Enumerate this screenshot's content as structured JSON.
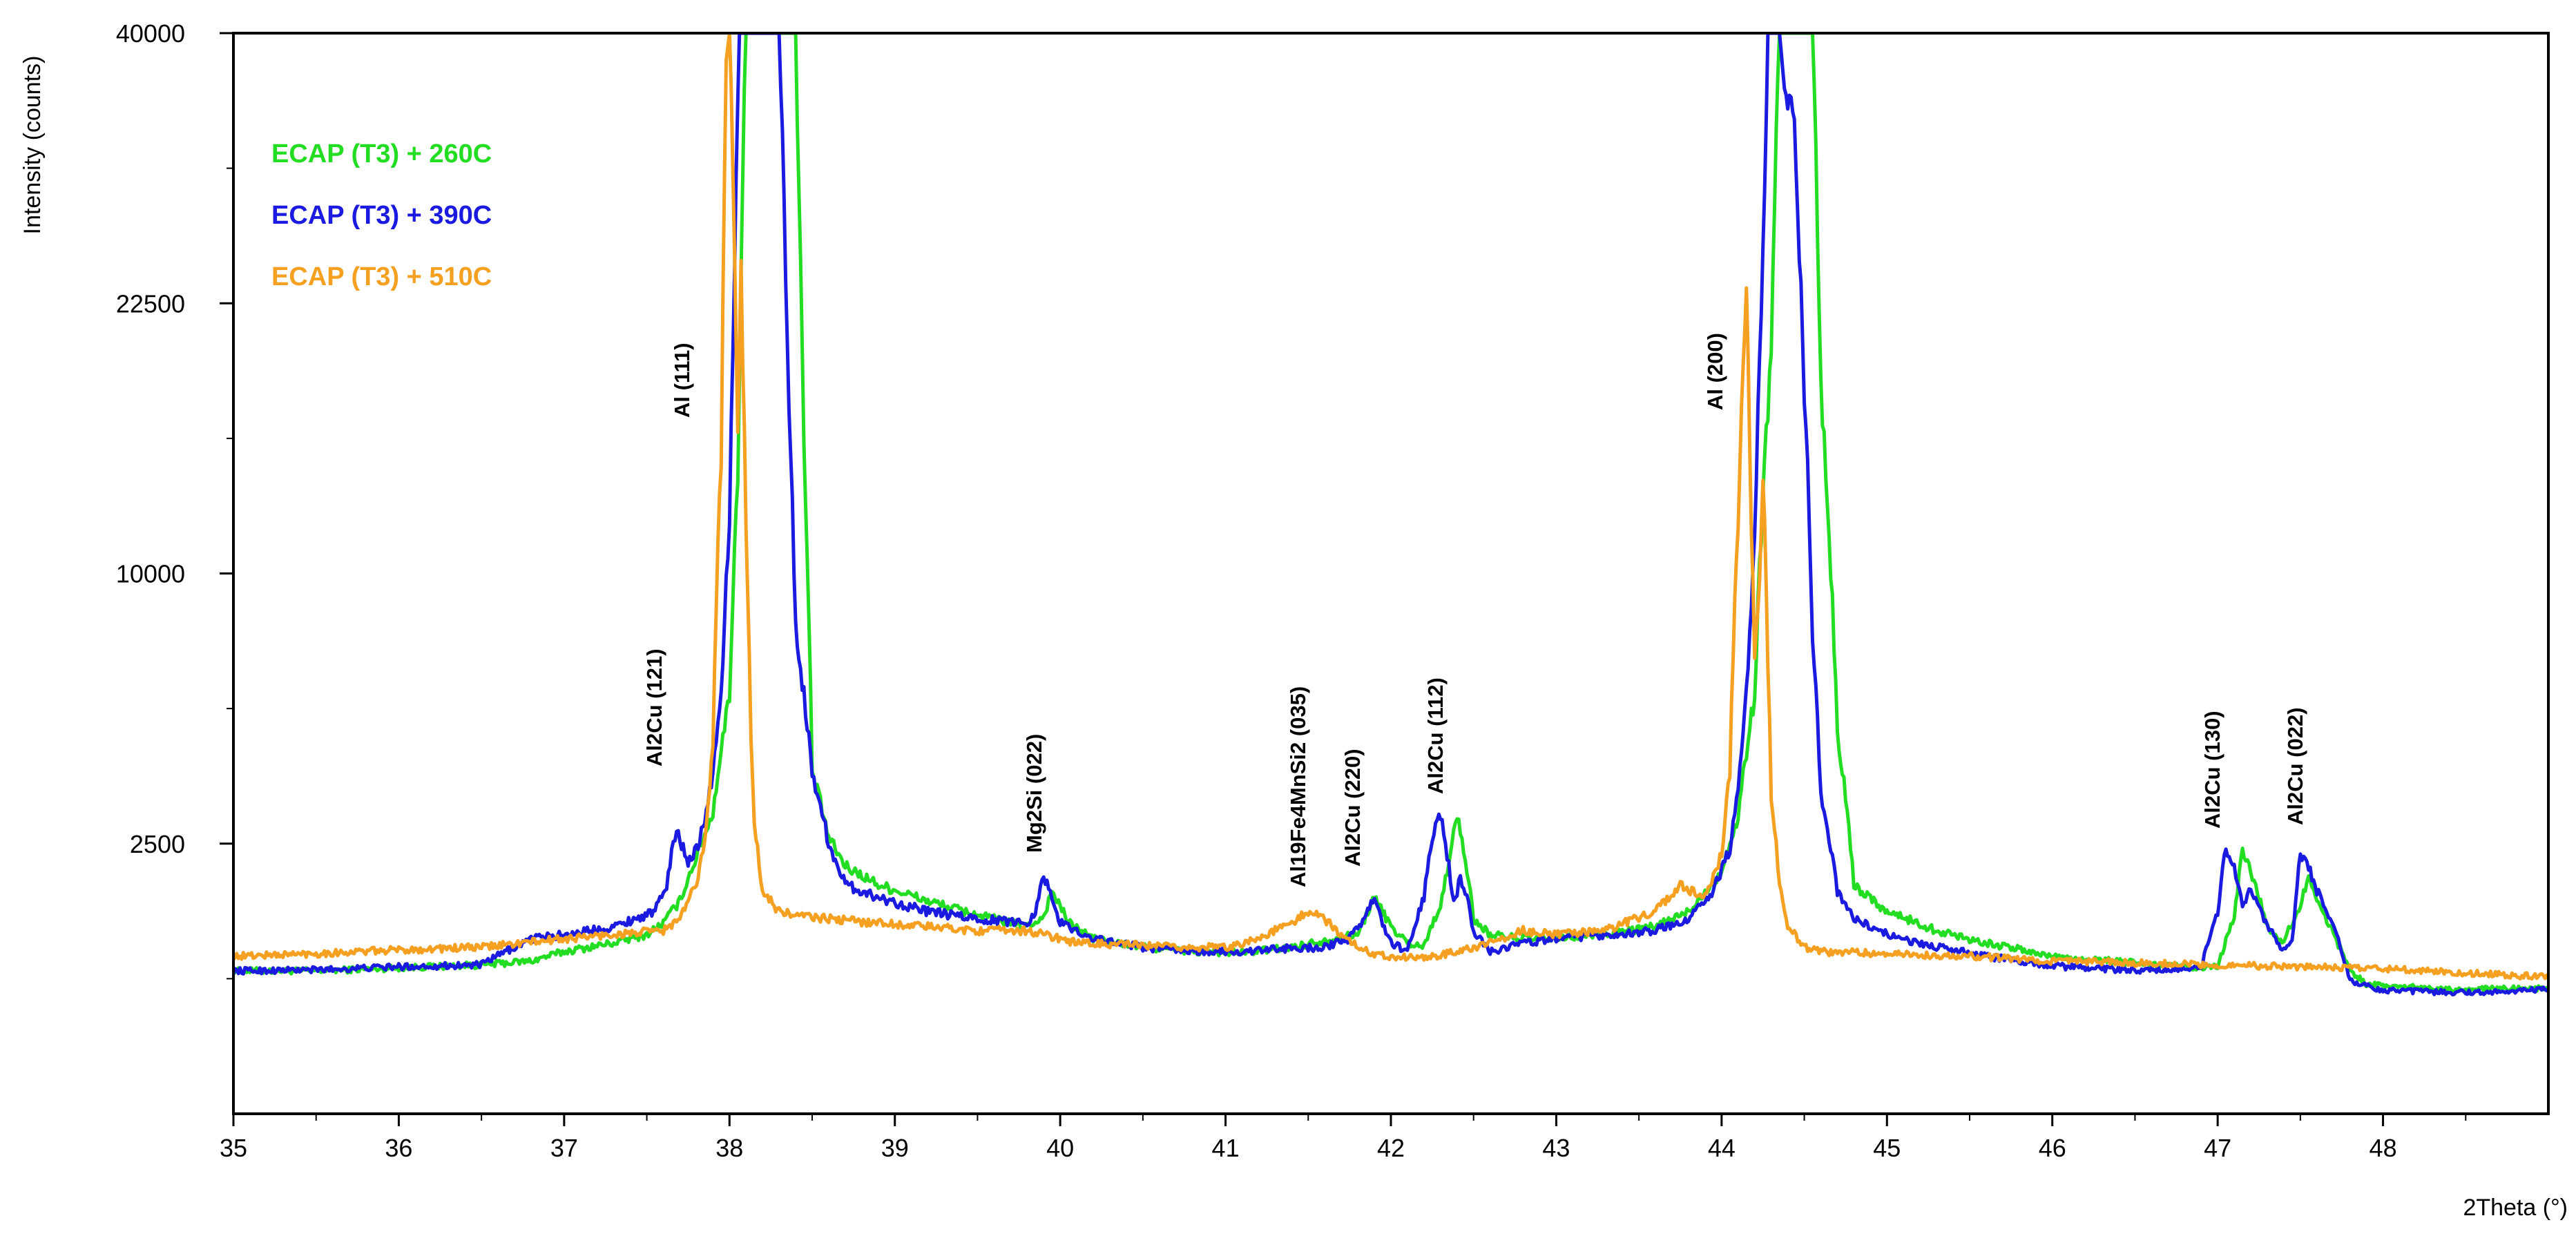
{
  "chart_data": {
    "type": "line",
    "title": "",
    "xlabel": "2Theta (°)",
    "ylabel": "Intensity (counts)",
    "xlim": [
      35,
      49
    ],
    "y_scale": "sqrt",
    "ylim": [
      0,
      40000
    ],
    "x_ticks": [
      35,
      36,
      37,
      38,
      39,
      40,
      41,
      42,
      43,
      44,
      45,
      46,
      47,
      48
    ],
    "x_tick_labels": [
      "35",
      "36",
      "37",
      "38",
      "39",
      "40",
      "41",
      "42",
      "43",
      "44",
      "45",
      "46",
      "47",
      "48"
    ],
    "y_ticks": [
      2500,
      10000,
      22500,
      40000
    ],
    "y_tick_labels": [
      "2500",
      "10000",
      "22500",
      "40000"
    ],
    "grid": false,
    "legend_position": "top-left",
    "series": [
      {
        "name": "ECAP (T3) + 260C",
        "color": "#22dd22",
        "x": [
          35.0,
          35.5,
          36.0,
          36.5,
          36.8,
          37.0,
          37.3,
          37.5,
          37.6,
          37.7,
          37.75,
          37.8,
          37.9,
          38.0,
          38.05,
          38.1,
          38.15,
          38.2,
          38.3,
          38.4,
          38.45,
          38.5,
          38.6,
          38.7,
          38.9,
          39.2,
          39.5,
          39.8,
          39.9,
          39.95,
          40.05,
          40.2,
          40.5,
          40.8,
          41.1,
          41.4,
          41.6,
          41.8,
          41.9,
          42.0,
          42.1,
          42.2,
          42.3,
          42.35,
          42.4,
          42.45,
          42.5,
          42.6,
          42.8,
          43.0,
          43.3,
          43.6,
          43.8,
          44.0,
          44.1,
          44.2,
          44.3,
          44.35,
          44.4,
          44.45,
          44.5,
          44.55,
          44.6,
          44.7,
          44.8,
          45.0,
          45.3,
          45.6,
          46.0,
          46.5,
          46.9,
          47.0,
          47.1,
          47.15,
          47.2,
          47.3,
          47.4,
          47.5,
          47.55,
          47.6,
          47.7,
          47.8,
          47.9,
          48.0,
          48.5,
          49.0
        ],
        "y": [
          700,
          700,
          730,
          760,
          800,
          900,
          1000,
          1100,
          1250,
          1550,
          1900,
          2250,
          3100,
          6000,
          14000,
          40000,
          40000,
          40000,
          40000,
          40000,
          15000,
          4000,
          2600,
          2100,
          1800,
          1550,
          1350,
          1200,
          1330,
          1700,
          1250,
          1050,
          950,
          900,
          890,
          950,
          1030,
          1100,
          1600,
          1200,
          1000,
          960,
          1500,
          2100,
          3100,
          2200,
          1300,
          1100,
          1050,
          1050,
          1100,
          1200,
          1400,
          2000,
          3000,
          6000,
          20000,
          40000,
          40000,
          40000,
          40000,
          40000,
          18000,
          5000,
          1800,
          1400,
          1150,
          1000,
          850,
          780,
          720,
          740,
          1300,
          2400,
          2000,
          1200,
          1000,
          1500,
          1900,
          1600,
          1100,
          700,
          580,
          560,
          530,
          540
        ]
      },
      {
        "name": "ECAP (T3) + 390C",
        "color": "#1a1ae0",
        "x": [
          35.0,
          35.5,
          36.0,
          36.5,
          36.8,
          37.0,
          37.3,
          37.55,
          37.62,
          37.68,
          37.72,
          37.75,
          37.8,
          37.85,
          37.9,
          37.95,
          38.0,
          38.03,
          38.06,
          38.1,
          38.2,
          38.25,
          38.3,
          38.35,
          38.4,
          38.5,
          38.6,
          38.7,
          38.9,
          39.2,
          39.5,
          39.8,
          39.85,
          39.9,
          39.95,
          40.0,
          40.2,
          40.5,
          40.8,
          41.1,
          41.4,
          41.6,
          41.75,
          41.85,
          41.9,
          41.95,
          42.0,
          42.1,
          42.2,
          42.25,
          42.3,
          42.35,
          42.38,
          42.42,
          42.45,
          42.5,
          42.6,
          42.8,
          43.0,
          43.3,
          43.6,
          43.8,
          43.95,
          44.05,
          44.1,
          44.15,
          44.2,
          44.25,
          44.28,
          44.3,
          44.33,
          44.35,
          44.38,
          44.4,
          44.43,
          44.45,
          44.5,
          44.55,
          44.6,
          44.7,
          44.8,
          45.0,
          45.3,
          45.6,
          46.0,
          46.5,
          46.9,
          47.0,
          47.05,
          47.1,
          47.15,
          47.2,
          47.3,
          47.4,
          47.45,
          47.5,
          47.55,
          47.6,
          47.7,
          47.8,
          48.0,
          48.5,
          49.0
        ],
        "y": [
          700,
          710,
          740,
          760,
          1050,
          1100,
          1200,
          1400,
          1800,
          2800,
          2400,
          2200,
          2400,
          2900,
          4000,
          6000,
          12000,
          24000,
          40000,
          40000,
          40000,
          40000,
          40000,
          20000,
          8000,
          4000,
          2500,
          1800,
          1600,
          1400,
          1300,
          1250,
          1400,
          1950,
          1600,
          1250,
          1050,
          950,
          900,
          900,
          940,
          950,
          1050,
          1350,
          1600,
          1250,
          1000,
          900,
          1600,
          2600,
          3100,
          2100,
          1500,
          1900,
          1700,
          1150,
          900,
          1000,
          1050,
          1100,
          1150,
          1300,
          1700,
          2400,
          3500,
          6000,
          11000,
          25000,
          40000,
          40000,
          40000,
          40000,
          36000,
          35000,
          36000,
          30000,
          18000,
          8000,
          3500,
          1700,
          1300,
          1100,
          950,
          850,
          750,
          700,
          720,
          1400,
          2400,
          2100,
          1500,
          1700,
          1200,
          900,
          1000,
          2300,
          2100,
          1700,
          1200,
          600,
          520,
          500,
          530
        ]
      },
      {
        "name": "ECAP (T3) + 510C",
        "color": "#f5a020",
        "x": [
          35.0,
          35.5,
          36.0,
          36.5,
          37.0,
          37.3,
          37.6,
          37.7,
          37.8,
          37.85,
          37.9,
          37.95,
          37.98,
          38.0,
          38.02,
          38.05,
          38.07,
          38.1,
          38.13,
          38.15,
          38.2,
          38.3,
          38.4,
          38.6,
          38.9,
          39.2,
          39.5,
          39.8,
          40.1,
          40.4,
          40.7,
          41.0,
          41.2,
          41.3,
          41.4,
          41.5,
          41.6,
          41.7,
          41.8,
          41.9,
          42.0,
          42.2,
          42.4,
          42.6,
          42.8,
          43.0,
          43.3,
          43.6,
          43.75,
          43.9,
          44.0,
          44.05,
          44.1,
          44.15,
          44.18,
          44.2,
          44.23,
          44.25,
          44.28,
          44.3,
          44.35,
          44.4,
          44.5,
          44.6,
          45.0,
          45.5,
          46.0,
          46.5,
          47.0,
          47.5,
          48.0,
          48.5,
          49.0
        ],
        "y": [
          850,
          880,
          920,
          950,
          1050,
          1100,
          1150,
          1300,
          1800,
          2600,
          4500,
          15000,
          38000,
          40000,
          30000,
          16000,
          24000,
          12000,
          5000,
          2800,
          1700,
          1400,
          1350,
          1300,
          1250,
          1200,
          1150,
          1150,
          1000,
          980,
          950,
          950,
          1050,
          1150,
          1250,
          1400,
          1300,
          1100,
          950,
          880,
          850,
          830,
          900,
          1000,
          1150,
          1100,
          1150,
          1400,
          1800,
          1600,
          2300,
          4000,
          12000,
          23000,
          12000,
          7000,
          10000,
          14000,
          7000,
          3500,
          1800,
          1200,
          950,
          900,
          880,
          850,
          800,
          780,
          760,
          740,
          720,
          680,
          640
        ]
      }
    ],
    "annotations": [
      {
        "text": "Al2Cu (121)",
        "x": 37.6
      },
      {
        "text": "Al (111)",
        "x": 37.75
      },
      {
        "text": "Mg2Si (022)",
        "x": 39.9
      },
      {
        "text": "Al19Fe4MnSi2 (035)",
        "x": 41.5
      },
      {
        "text": "Al2Cu (220)",
        "x": 41.85
      },
      {
        "text": "Al2Cu (112)",
        "x": 42.35
      },
      {
        "text": "Al (200)",
        "x": 44.02
      },
      {
        "text": "Al2Cu (130)",
        "x": 47.0
      },
      {
        "text": "Al2Cu (022)",
        "x": 47.5
      }
    ]
  }
}
